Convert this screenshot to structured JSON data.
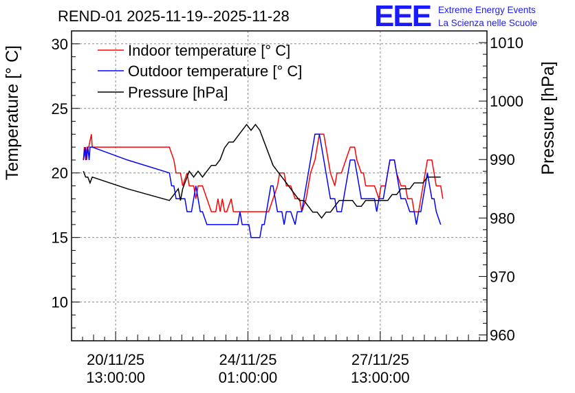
{
  "chart_data": {
    "type": "line",
    "title": "REND-01 2025-11-19--2025-11-28",
    "ylabel": "Temperature [° C]",
    "y2label": "Pressure [hPa]",
    "xlabel": "",
    "ylim": [
      7,
      31
    ],
    "y2lim": [
      959,
      1012
    ],
    "xlim": [
      0,
      9.42
    ],
    "grid": true,
    "legend_position": "top-left",
    "x_ticks": [
      {
        "x": 1.0,
        "date": "20/11/25",
        "time": "13:00:00"
      },
      {
        "x": 4.0,
        "date": "24/11/25",
        "time": "01:00:00"
      },
      {
        "x": 7.0,
        "date": "27/11/25",
        "time": "13:00:00"
      }
    ],
    "y_ticks": [
      10,
      15,
      20,
      25,
      30
    ],
    "y2_ticks": [
      960,
      970,
      980,
      990,
      1000,
      1010
    ],
    "series": [
      {
        "name": "Indoor temperature [° C]",
        "color": "#ff0000",
        "axis": "left",
        "points": [
          [
            0.0,
            21
          ],
          [
            0.02,
            22
          ],
          [
            0.05,
            21
          ],
          [
            0.08,
            22
          ],
          [
            0.12,
            22
          ],
          [
            0.18,
            23
          ],
          [
            0.2,
            22
          ],
          [
            0.3,
            22
          ],
          [
            0.6,
            22
          ],
          [
            1.0,
            22
          ],
          [
            1.5,
            22
          ],
          [
            1.95,
            22
          ],
          [
            2.05,
            21
          ],
          [
            2.1,
            20
          ],
          [
            2.2,
            20
          ],
          [
            2.25,
            19
          ],
          [
            2.35,
            20
          ],
          [
            2.4,
            19
          ],
          [
            2.5,
            19
          ],
          [
            2.55,
            18
          ],
          [
            2.6,
            19
          ],
          [
            2.7,
            19
          ],
          [
            2.8,
            18
          ],
          [
            2.9,
            17
          ],
          [
            3.0,
            17
          ],
          [
            3.05,
            18
          ],
          [
            3.1,
            17
          ],
          [
            3.15,
            18
          ],
          [
            3.2,
            17
          ],
          [
            3.25,
            17
          ],
          [
            3.35,
            18
          ],
          [
            3.4,
            17
          ],
          [
            3.5,
            17
          ],
          [
            3.8,
            17
          ],
          [
            4.0,
            17
          ],
          [
            4.2,
            17
          ],
          [
            4.3,
            18
          ],
          [
            4.4,
            19
          ],
          [
            4.45,
            20
          ],
          [
            4.55,
            20
          ],
          [
            4.6,
            19
          ],
          [
            4.7,
            19
          ],
          [
            4.8,
            18
          ],
          [
            4.9,
            18
          ],
          [
            4.95,
            17
          ],
          [
            5.05,
            18
          ],
          [
            5.1,
            19
          ],
          [
            5.15,
            20
          ],
          [
            5.25,
            21
          ],
          [
            5.3,
            22
          ],
          [
            5.35,
            23
          ],
          [
            5.45,
            23
          ],
          [
            5.5,
            22
          ],
          [
            5.55,
            21
          ],
          [
            5.6,
            20
          ],
          [
            5.7,
            19
          ],
          [
            5.75,
            20
          ],
          [
            5.85,
            20
          ],
          [
            5.95,
            21
          ],
          [
            6.05,
            22
          ],
          [
            6.15,
            22
          ],
          [
            6.2,
            21
          ],
          [
            6.3,
            20
          ],
          [
            6.35,
            20
          ],
          [
            6.4,
            19
          ],
          [
            6.6,
            19
          ],
          [
            6.7,
            18
          ],
          [
            6.75,
            19
          ],
          [
            6.85,
            19
          ],
          [
            6.9,
            20
          ],
          [
            6.95,
            21
          ],
          [
            7.05,
            21
          ],
          [
            7.1,
            20
          ],
          [
            7.2,
            19
          ],
          [
            7.3,
            19
          ],
          [
            7.35,
            18
          ],
          [
            7.45,
            18
          ],
          [
            7.5,
            17
          ],
          [
            7.6,
            17
          ],
          [
            7.65,
            18
          ],
          [
            7.7,
            19
          ],
          [
            7.75,
            20
          ],
          [
            7.8,
            21
          ],
          [
            7.9,
            21
          ],
          [
            7.95,
            20
          ],
          [
            8.0,
            19
          ],
          [
            8.1,
            19
          ],
          [
            8.15,
            18
          ]
        ]
      },
      {
        "name": "Outdoor temperature [° C]",
        "color": "#0000ff",
        "axis": "left",
        "points": [
          [
            0.0,
            21
          ],
          [
            0.04,
            22
          ],
          [
            0.07,
            21
          ],
          [
            0.1,
            22
          ],
          [
            0.13,
            21
          ],
          [
            0.15,
            22
          ],
          [
            0.2,
            22
          ],
          [
            1.0,
            21
          ],
          [
            1.95,
            20
          ],
          [
            2.0,
            19
          ],
          [
            2.05,
            19
          ],
          [
            2.1,
            18
          ],
          [
            2.2,
            18
          ],
          [
            2.3,
            18
          ],
          [
            2.35,
            17
          ],
          [
            2.45,
            17
          ],
          [
            2.5,
            18
          ],
          [
            2.55,
            19
          ],
          [
            2.6,
            18
          ],
          [
            2.65,
            17
          ],
          [
            2.7,
            17
          ],
          [
            2.8,
            16
          ],
          [
            3.0,
            16
          ],
          [
            3.4,
            16
          ],
          [
            3.5,
            16
          ],
          [
            3.55,
            17
          ],
          [
            3.6,
            16
          ],
          [
            3.65,
            16
          ],
          [
            3.75,
            16
          ],
          [
            3.8,
            15
          ],
          [
            4.0,
            15
          ],
          [
            4.05,
            16
          ],
          [
            4.1,
            16
          ],
          [
            4.15,
            17
          ],
          [
            4.2,
            18
          ],
          [
            4.25,
            19
          ],
          [
            4.3,
            19
          ],
          [
            4.35,
            18
          ],
          [
            4.4,
            17
          ],
          [
            4.5,
            17
          ],
          [
            4.55,
            16
          ],
          [
            4.6,
            17
          ],
          [
            4.7,
            17
          ],
          [
            4.8,
            16
          ],
          [
            4.85,
            17
          ],
          [
            4.95,
            17
          ],
          [
            5.0,
            18
          ],
          [
            5.05,
            19
          ],
          [
            5.1,
            20
          ],
          [
            5.15,
            21
          ],
          [
            5.2,
            22
          ],
          [
            5.25,
            23
          ],
          [
            5.35,
            23
          ],
          [
            5.4,
            22
          ],
          [
            5.45,
            21
          ],
          [
            5.5,
            20
          ],
          [
            5.55,
            19
          ],
          [
            5.6,
            18
          ],
          [
            5.7,
            18
          ],
          [
            5.75,
            17
          ],
          [
            5.85,
            17
          ],
          [
            5.9,
            18
          ],
          [
            5.95,
            19
          ],
          [
            6.0,
            20
          ],
          [
            6.05,
            21
          ],
          [
            6.15,
            21
          ],
          [
            6.2,
            20
          ],
          [
            6.25,
            19
          ],
          [
            6.3,
            18
          ],
          [
            6.4,
            18
          ],
          [
            6.6,
            18
          ],
          [
            6.65,
            17
          ],
          [
            6.7,
            18
          ],
          [
            6.8,
            18
          ],
          [
            6.85,
            19
          ],
          [
            6.9,
            20
          ],
          [
            6.95,
            21
          ],
          [
            7.05,
            21
          ],
          [
            7.1,
            20
          ],
          [
            7.15,
            19
          ],
          [
            7.2,
            18
          ],
          [
            7.3,
            18
          ],
          [
            7.4,
            17
          ],
          [
            7.5,
            17
          ],
          [
            7.55,
            16
          ],
          [
            7.6,
            17
          ],
          [
            7.65,
            17
          ],
          [
            7.7,
            18
          ],
          [
            7.75,
            19
          ],
          [
            7.8,
            20
          ],
          [
            7.85,
            19
          ],
          [
            7.9,
            18
          ],
          [
            7.95,
            18
          ],
          [
            8.0,
            17
          ],
          [
            8.1,
            16
          ]
        ]
      },
      {
        "name": "Pressure [hPa]",
        "color": "#000000",
        "axis": "right",
        "points": [
          [
            0.0,
            988
          ],
          [
            0.05,
            987
          ],
          [
            0.1,
            987
          ],
          [
            0.15,
            986
          ],
          [
            0.2,
            987
          ],
          [
            1.0,
            985
          ],
          [
            1.95,
            983
          ],
          [
            2.05,
            984
          ],
          [
            2.15,
            985
          ],
          [
            2.2,
            983
          ],
          [
            2.25,
            985
          ],
          [
            2.3,
            986
          ],
          [
            2.35,
            987
          ],
          [
            2.4,
            988
          ],
          [
            2.5,
            987
          ],
          [
            2.6,
            988
          ],
          [
            2.7,
            987
          ],
          [
            2.8,
            988
          ],
          [
            2.9,
            989
          ],
          [
            3.0,
            989
          ],
          [
            3.1,
            990
          ],
          [
            3.2,
            992
          ],
          [
            3.3,
            993
          ],
          [
            3.4,
            993
          ],
          [
            3.5,
            994
          ],
          [
            3.6,
            995
          ],
          [
            3.7,
            996
          ],
          [
            3.8,
            995
          ],
          [
            3.9,
            996
          ],
          [
            4.0,
            995
          ],
          [
            4.1,
            993
          ],
          [
            4.2,
            991
          ],
          [
            4.3,
            989
          ],
          [
            4.4,
            988
          ],
          [
            4.5,
            987
          ],
          [
            4.6,
            986
          ],
          [
            4.7,
            985
          ],
          [
            4.8,
            984
          ],
          [
            4.9,
            983
          ],
          [
            5.0,
            983
          ],
          [
            5.1,
            982
          ],
          [
            5.2,
            981
          ],
          [
            5.3,
            981
          ],
          [
            5.4,
            980
          ],
          [
            5.5,
            981
          ],
          [
            5.6,
            981
          ],
          [
            5.7,
            982
          ],
          [
            5.8,
            983
          ],
          [
            5.9,
            983
          ],
          [
            6.0,
            983
          ],
          [
            6.1,
            983
          ],
          [
            6.2,
            982
          ],
          [
            6.3,
            982
          ],
          [
            6.4,
            983
          ],
          [
            6.5,
            983
          ],
          [
            6.6,
            983
          ],
          [
            6.7,
            983
          ],
          [
            6.8,
            983
          ],
          [
            6.9,
            983
          ],
          [
            7.0,
            984
          ],
          [
            7.1,
            984
          ],
          [
            7.2,
            985
          ],
          [
            7.3,
            985
          ],
          [
            7.4,
            985
          ],
          [
            7.5,
            986
          ],
          [
            7.6,
            986
          ],
          [
            7.7,
            986
          ],
          [
            7.8,
            987
          ],
          [
            7.9,
            987
          ],
          [
            8.0,
            987
          ],
          [
            8.1,
            987
          ]
        ]
      }
    ]
  },
  "logo": {
    "mark": "EEE",
    "line1": "Extreme Energy Events",
    "line2": "La Scienza nelle Scuole"
  },
  "colors": {
    "indoor": "#ff0000",
    "outdoor": "#0000ff",
    "pressure": "#000000",
    "brand": "#1a1aff"
  }
}
